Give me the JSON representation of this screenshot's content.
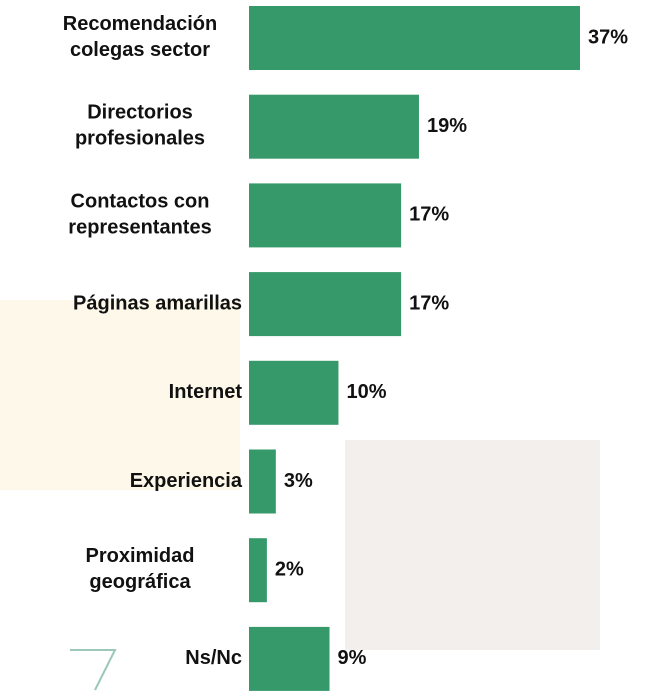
{
  "chart_data": {
    "type": "barh",
    "categories": [
      "Recomendación\ncolegas sector",
      "Directorios\nprofesionales",
      "Contactos con\nrepresentantes",
      "Páginas amarillas",
      "Internet",
      "Experiencia",
      "Proximidad\ngeográfica",
      "Ns/Nc"
    ],
    "values": [
      37,
      19,
      17,
      17,
      10,
      3,
      2,
      9
    ],
    "value_labels": [
      "37%",
      "19%",
      "17%",
      "17%",
      "10%",
      "3%",
      "2%",
      "9%"
    ],
    "color": "#36996a",
    "xlim": [
      0,
      37
    ]
  }
}
